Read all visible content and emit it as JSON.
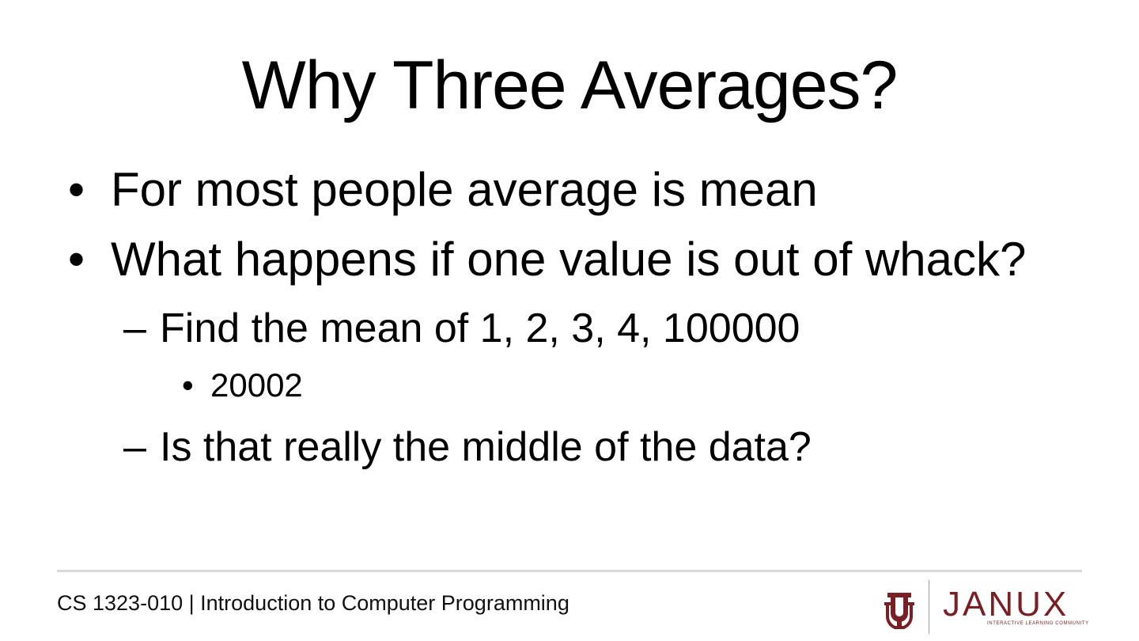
{
  "slide": {
    "title": "Why Three Averages?",
    "bullets": [
      {
        "marker": "•",
        "text": "For most people average is mean"
      },
      {
        "marker": "•",
        "text": "What happens if one value is out of whack?"
      },
      {
        "marker": "–",
        "text": "Find the mean of 1, 2, 3, 4, 100000"
      },
      {
        "marker": "•",
        "text": "20002"
      },
      {
        "marker": "–",
        "text": "Is that really the middle of the data?"
      }
    ]
  },
  "footer": {
    "course": "CS 1323-010 | Introduction to Computer Programming",
    "logo_word": "JANUX",
    "logo_tagline": "INTERACTIVE LEARNING COMMUNITY",
    "brand_color": "#7a1f24",
    "rule_color": "#d9d9d9"
  }
}
